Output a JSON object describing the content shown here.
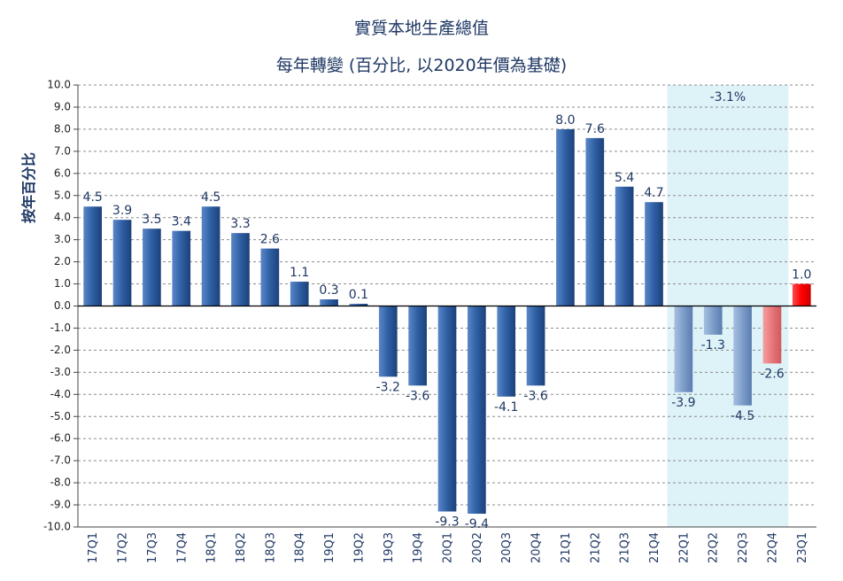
{
  "chart_data": {
    "type": "bar",
    "title": "實質本地生產總值",
    "subtitle": "每年轉變 (百分比, 以2020年價為基礎)",
    "ylabel": "按年百分比",
    "xlabel": "",
    "ylim": [
      -10.0,
      10.0
    ],
    "ytick_step": 1.0,
    "grid": true,
    "categories": [
      "17Q1",
      "17Q2",
      "17Q3",
      "17Q4",
      "18Q1",
      "18Q2",
      "18Q3",
      "18Q4",
      "19Q1",
      "19Q2",
      "19Q3",
      "19Q4",
      "20Q1",
      "20Q2",
      "20Q3",
      "20Q4",
      "21Q1",
      "21Q2",
      "21Q3",
      "21Q4",
      "22Q1",
      "22Q2",
      "22Q3",
      "22Q4",
      "23Q1"
    ],
    "values": [
      4.5,
      3.9,
      3.5,
      3.4,
      4.5,
      3.3,
      2.6,
      1.1,
      0.3,
      0.1,
      -3.2,
      -3.6,
      -9.3,
      -9.4,
      -4.1,
      -3.6,
      8.0,
      7.6,
      5.4,
      4.7,
      -3.9,
      -1.3,
      -4.5,
      -2.6,
      1.0
    ],
    "labels": [
      "4.5",
      "3.9",
      "3.5",
      "3.4",
      "4.5",
      "3.3",
      "2.6",
      "1.1",
      "0.3",
      "0.1",
      "-3.2",
      "-3.6",
      "-9.3",
      "-9.4",
      "-4.1",
      "-3.6",
      "8.0",
      "7.6",
      "5.4",
      "4.7",
      "-3.9",
      "-1.3",
      "-4.5",
      "-2.6",
      "1.0"
    ],
    "bar_colors": [
      "#2e5fa3",
      "#2e5fa3",
      "#2e5fa3",
      "#2e5fa3",
      "#2e5fa3",
      "#2e5fa3",
      "#2e5fa3",
      "#2e5fa3",
      "#2e5fa3",
      "#2e5fa3",
      "#2e5fa3",
      "#2e5fa3",
      "#2e5fa3",
      "#2e5fa3",
      "#2e5fa3",
      "#2e5fa3",
      "#2e5fa3",
      "#2e5fa3",
      "#2e5fa3",
      "#2e5fa3",
      "#7d9ec9",
      "#7d9ec9",
      "#6f8fc0",
      "#e8767a",
      "#ff0000"
    ],
    "shaded_region": {
      "from": "22Q1",
      "to": "22Q4",
      "color": "#def3f8",
      "label": "-3.1%"
    }
  }
}
